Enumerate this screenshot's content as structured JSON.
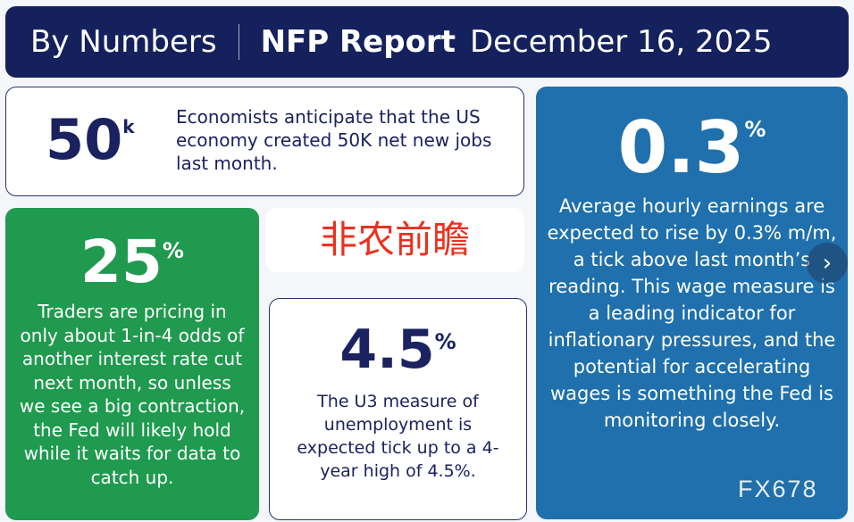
{
  "header": {
    "section": "By Numbers",
    "report": "NFP Report",
    "date": "December 16, 2025"
  },
  "jobs": {
    "value": "50",
    "unit": "k",
    "text": "Economists anticipate that the US economy created 50K net new jobs last month."
  },
  "rate_cut": {
    "value": "25",
    "unit": "%",
    "text": "Traders are pricing in only about 1-in-4 odds of another interest rate cut next month, so unless we see a big contraction, the Fed will likely hold while it waits for data to catch up."
  },
  "chinese_title": "非农前瞻",
  "unemployment": {
    "value": "4.5",
    "unit": "%",
    "text": "The U3 measure of unemployment is expected tick up to a 4-year high of 4.5%."
  },
  "earnings": {
    "value": "0.3",
    "unit": "%",
    "text": "Average hourly earnings are expected to rise by 0.3% m/m, a tick above last month’s reading. This wage measure is a leading indicator for inflationary pressures, and the potential for accelerating wages is something the Fed is monitoring closely."
  },
  "next_icon": "chevron-right-icon",
  "watermark": "FX678"
}
